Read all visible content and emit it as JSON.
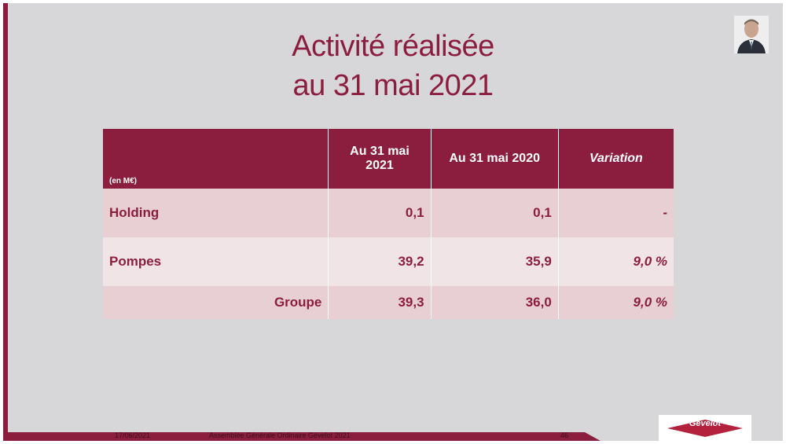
{
  "title": {
    "line1": "Activité réalisée",
    "line2": "au 31 mai 2021"
  },
  "table": {
    "unit_label": "(en M€)",
    "headers": [
      "Au 31 mai 2021",
      "Au 31 mai 2020",
      "Variation"
    ],
    "rows": [
      {
        "label": "Holding",
        "v2021": "0,1",
        "v2020": "0,1",
        "variation": "-"
      },
      {
        "label": "Pompes",
        "v2021": "39,2",
        "v2020": "35,9",
        "variation": "9,0 %"
      },
      {
        "label": "Groupe",
        "v2021": "39,3",
        "v2020": "36,0",
        "variation": "9,0 %"
      }
    ]
  },
  "footer": {
    "date": "17/06/2021",
    "event": "Assemblée Générale Ordinaire Gévelot 2021",
    "page": "46"
  },
  "logo": {
    "text": "Gévelot"
  },
  "colors": {
    "brand": "#8b1e3f",
    "background": "#d7d7d9",
    "row_dark": "#e8cfd3",
    "row_light": "#f1e4e6"
  }
}
